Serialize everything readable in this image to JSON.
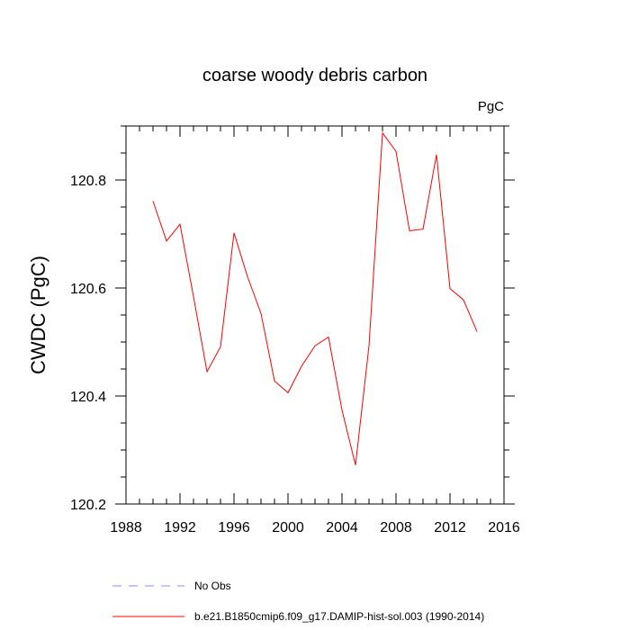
{
  "chart_data": {
    "type": "line",
    "title": "coarse woody debris carbon",
    "units_label": "PgC",
    "xlabel": "",
    "ylabel": "CWDC  (PgC)",
    "xlim": [
      1988,
      2016
    ],
    "ylim": [
      120.2,
      120.9
    ],
    "x_ticks": [
      "1988",
      "1992",
      "1996",
      "2000",
      "2004",
      "2008",
      "2012",
      "2016"
    ],
    "y_ticks": [
      "120.2",
      "120.4",
      "120.6",
      "120.8"
    ],
    "grid": false,
    "legend_position": "bottom",
    "series": [
      {
        "name": "No Obs",
        "color": "#8a8aff",
        "style": "dashed",
        "x": [],
        "values": []
      },
      {
        "name": "b.e21.B1850cmip6.f09_g17.DAMIP-hist-sol.003 (1990-2014)",
        "color": "#ff0000",
        "style": "solid",
        "x": [
          1990,
          1991,
          1992,
          1993,
          1994,
          1995,
          1996,
          1997,
          1998,
          1999,
          2000,
          2001,
          2002,
          2003,
          2004,
          2005,
          2006,
          2007,
          2008,
          2009,
          2010,
          2011,
          2012,
          2013,
          2014
        ],
        "values": [
          120.761,
          120.687,
          120.718,
          120.584,
          120.445,
          120.491,
          120.702,
          120.621,
          120.553,
          120.428,
          120.406,
          120.455,
          120.493,
          120.509,
          120.374,
          120.272,
          120.493,
          120.887,
          120.853,
          120.706,
          120.709,
          120.847,
          120.599,
          120.578,
          120.519
        ]
      }
    ]
  }
}
